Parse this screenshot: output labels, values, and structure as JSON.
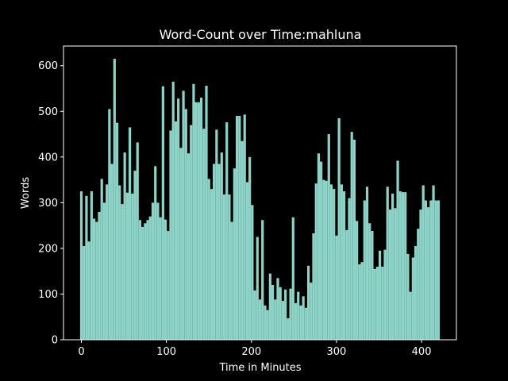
{
  "chart_data": {
    "type": "bar",
    "title": "Word-Count over Time:mahluna",
    "xlabel": "Time in Minutes",
    "ylabel": "Words",
    "color": "#8dd3c7",
    "bar_width": 3,
    "x": [
      0,
      3,
      6,
      9,
      12,
      15,
      18,
      21,
      24,
      27,
      30,
      33,
      36,
      39,
      42,
      45,
      48,
      51,
      54,
      57,
      60,
      63,
      66,
      69,
      72,
      75,
      78,
      81,
      84,
      87,
      90,
      93,
      96,
      99,
      102,
      105,
      108,
      111,
      114,
      117,
      120,
      123,
      126,
      129,
      132,
      135,
      138,
      141,
      144,
      147,
      150,
      153,
      156,
      159,
      162,
      165,
      168,
      171,
      174,
      177,
      180,
      183,
      186,
      189,
      192,
      195,
      198,
      201,
      204,
      207,
      210,
      213,
      216,
      219,
      222,
      225,
      228,
      231,
      234,
      237,
      240,
      243,
      246,
      249,
      252,
      255,
      258,
      261,
      264,
      267,
      270,
      273,
      276,
      279,
      282,
      285,
      288,
      291,
      294,
      297,
      300,
      303,
      306,
      309,
      312,
      315,
      318,
      321,
      324,
      327,
      330,
      333,
      336,
      339,
      342,
      345,
      348,
      351,
      354,
      357,
      360,
      363,
      366,
      369,
      372,
      375,
      378,
      381,
      384,
      387,
      390,
      393,
      396,
      399,
      402,
      405,
      408,
      411,
      414,
      417,
      420
    ],
    "values": [
      325,
      205,
      315,
      215,
      325,
      265,
      258,
      280,
      352,
      300,
      340,
      505,
      385,
      615,
      475,
      338,
      297,
      410,
      322,
      465,
      320,
      370,
      432,
      262,
      247,
      255,
      262,
      270,
      300,
      380,
      300,
      268,
      555,
      263,
      238,
      458,
      565,
      478,
      528,
      420,
      545,
      505,
      408,
      470,
      560,
      520,
      520,
      530,
      462,
      556,
      352,
      330,
      385,
      460,
      385,
      410,
      318,
      476,
      318,
      258,
      375,
      490,
      490,
      435,
      493,
      345,
      400,
      295,
      108,
      225,
      88,
      262,
      75,
      65,
      145,
      120,
      88,
      135,
      115,
      85,
      110,
      47,
      112,
      268,
      80,
      105,
      75,
      95,
      70,
      162,
      125,
      233,
      342,
      408,
      390,
      350,
      348,
      450,
      340,
      330,
      228,
      485,
      340,
      325,
      240,
      310,
      455,
      438,
      260,
      165,
      170,
      305,
      335,
      255,
      238,
      155,
      160,
      195,
      160,
      197,
      335,
      285,
      320,
      288,
      392,
      325,
      323,
      323,
      188,
      105,
      180,
      205,
      243,
      285,
      338,
      305,
      290,
      305,
      338,
      305,
      305
    ],
    "xlim": [
      -21,
      441
    ],
    "ylim": [
      0,
      643
    ],
    "xticks": [
      0,
      100,
      200,
      300,
      400
    ],
    "yticks": [
      0,
      100,
      200,
      300,
      400,
      500,
      600
    ]
  }
}
